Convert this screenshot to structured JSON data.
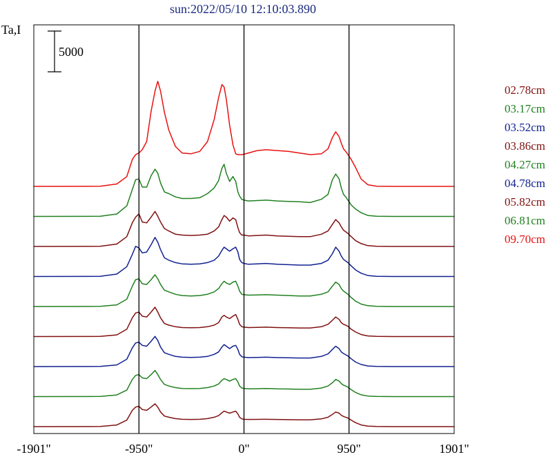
{
  "chart_data": {
    "type": "line",
    "title": "sun:2022/05/10 12:10:03.890",
    "ylabel": "Ta,I",
    "scale_bar_label": "5000",
    "scale_bar_value": 5000,
    "x_ticks": [
      -1901,
      -950,
      0,
      950,
      1901
    ],
    "x_tick_labels": [
      "-1901\"",
      "-950\"",
      "0\"",
      "950\"",
      "1901\""
    ],
    "xlim": [
      -1901,
      1901
    ],
    "vertical_lines_x": [
      -950,
      0,
      950
    ],
    "grid": false,
    "legend_position": "right",
    "colors": {
      "title": "#1a2a80",
      "frame": "#000000"
    },
    "x": [
      -1901,
      -1300,
      -1150,
      -1060,
      -1010,
      -980,
      -950,
      -920,
      -880,
      -840,
      -805,
      -780,
      -755,
      -720,
      -680,
      -620,
      -560,
      -480,
      -400,
      -330,
      -270,
      -230,
      -200,
      -180,
      -160,
      -130,
      -100,
      -75,
      -55,
      -40,
      -20,
      0,
      40,
      120,
      200,
      300,
      400,
      500,
      600,
      700,
      760,
      800,
      830,
      860,
      880,
      900,
      920,
      940,
      970,
      1010,
      1060,
      1120,
      1200,
      1350,
      1500,
      1901
    ],
    "series": [
      {
        "name": "09.70cm",
        "color": "#e81010",
        "values": [
          300,
          320,
          600,
          1500,
          3600,
          4200,
          4400,
          4800,
          5800,
          9500,
          12000,
          13200,
          12000,
          9400,
          7200,
          5200,
          4400,
          4300,
          4600,
          5800,
          8500,
          11200,
          12800,
          12500,
          11000,
          7800,
          5400,
          4300,
          4200,
          4200,
          4200,
          4250,
          4400,
          4700,
          4800,
          4700,
          4600,
          4400,
          4200,
          4300,
          4900,
          6300,
          7000,
          6400,
          5600,
          4900,
          4600,
          4200,
          3600,
          2600,
          1200,
          500,
          320,
          300,
          300,
          300
        ]
      },
      {
        "name": "06.81cm",
        "color": "#208020",
        "values": [
          300,
          320,
          600,
          1600,
          3600,
          4800,
          4900,
          3900,
          3900,
          5300,
          6100,
          5600,
          4400,
          3300,
          3100,
          2700,
          2500,
          2500,
          2600,
          3100,
          3800,
          4700,
          6200,
          6700,
          5600,
          4600,
          5200,
          4600,
          3300,
          2800,
          2400,
          2300,
          2200,
          2250,
          2300,
          2200,
          2150,
          2100,
          2000,
          2400,
          3000,
          4800,
          5500,
          4900,
          3800,
          3000,
          2700,
          2300,
          1700,
          1200,
          750,
          420,
          320,
          300,
          300,
          300
        ]
      },
      {
        "name": "05.82cm",
        "color": "#801010",
        "values": [
          300,
          320,
          600,
          1500,
          3200,
          3900,
          4300,
          3300,
          3200,
          3900,
          4600,
          4000,
          3300,
          2500,
          2200,
          1800,
          1700,
          1650,
          1700,
          1800,
          2200,
          2700,
          3600,
          4100,
          3900,
          3400,
          3800,
          3600,
          2600,
          2000,
          1700,
          1700,
          1600,
          1650,
          1700,
          1600,
          1550,
          1500,
          1500,
          1800,
          2200,
          3000,
          3600,
          3200,
          2700,
          2300,
          2100,
          1900,
          1500,
          1000,
          650,
          400,
          320,
          300,
          300,
          300
        ]
      },
      {
        "name": "04.78cm",
        "color": "#102090",
        "values": [
          300,
          320,
          600,
          1500,
          3000,
          4000,
          3800,
          3200,
          3300,
          4200,
          5100,
          4500,
          3600,
          2600,
          2300,
          2000,
          1850,
          1800,
          1850,
          2000,
          2300,
          2800,
          3500,
          3900,
          3700,
          3400,
          3700,
          3900,
          3300,
          2400,
          2000,
          1900,
          1800,
          1850,
          1900,
          1800,
          1750,
          1700,
          1700,
          1900,
          2300,
          3100,
          3900,
          3400,
          2800,
          2400,
          2200,
          2000,
          1600,
          1100,
          700,
          420,
          320,
          300,
          300,
          300
        ]
      },
      {
        "name": "04.27cm",
        "color": "#208020",
        "values": [
          300,
          320,
          500,
          1200,
          2800,
          3600,
          3700,
          3100,
          3000,
          3600,
          4200,
          3700,
          3000,
          2300,
          2100,
          1800,
          1650,
          1600,
          1650,
          1800,
          2100,
          2500,
          3100,
          3400,
          3200,
          3000,
          3300,
          3400,
          2800,
          2200,
          1800,
          1750,
          1700,
          1720,
          1750,
          1700,
          1650,
          1600,
          1600,
          1800,
          2100,
          2800,
          3300,
          3000,
          2500,
          2200,
          2000,
          1800,
          1400,
          950,
          600,
          400,
          320,
          300,
          300,
          300
        ]
      },
      {
        "name": "03.86cm",
        "color": "#801010",
        "values": [
          300,
          320,
          500,
          1200,
          2600,
          3200,
          3300,
          2800,
          2700,
          3300,
          3900,
          3300,
          2600,
          1900,
          1700,
          1500,
          1400,
          1380,
          1400,
          1500,
          1700,
          2000,
          2700,
          2900,
          2700,
          2500,
          2800,
          3000,
          2400,
          1800,
          1500,
          1450,
          1400,
          1420,
          1450,
          1400,
          1380,
          1350,
          1350,
          1500,
          1800,
          2300,
          2700,
          2400,
          2000,
          1800,
          1700,
          1550,
          1200,
          850,
          550,
          380,
          320,
          300,
          300,
          300
        ]
      },
      {
        "name": "03.52cm",
        "color": "#102090",
        "values": [
          300,
          320,
          500,
          1200,
          2600,
          3200,
          3300,
          2900,
          2800,
          3400,
          4000,
          3500,
          2700,
          2000,
          1800,
          1550,
          1450,
          1420,
          1450,
          1550,
          1800,
          2100,
          2700,
          3000,
          2800,
          2500,
          2800,
          2900,
          2400,
          1800,
          1500,
          1450,
          1400,
          1420,
          1450,
          1400,
          1380,
          1350,
          1350,
          1550,
          1850,
          2400,
          2800,
          2500,
          2100,
          1900,
          1750,
          1600,
          1250,
          850,
          550,
          380,
          320,
          300,
          300,
          300
        ]
      },
      {
        "name": "03.17cm",
        "color": "#208020",
        "values": [
          300,
          320,
          500,
          1100,
          2400,
          2900,
          3000,
          2600,
          2500,
          3000,
          3500,
          3000,
          2400,
          1800,
          1600,
          1400,
          1300,
          1280,
          1300,
          1400,
          1600,
          1850,
          2300,
          2500,
          2400,
          2200,
          2400,
          2500,
          2100,
          1600,
          1350,
          1300,
          1250,
          1270,
          1300,
          1250,
          1230,
          1200,
          1200,
          1350,
          1600,
          2000,
          2400,
          2200,
          1900,
          1700,
          1600,
          1450,
          1150,
          800,
          520,
          370,
          320,
          300,
          300,
          300
        ]
      },
      {
        "name": "02.78cm",
        "color": "#801010",
        "values": [
          300,
          320,
          500,
          1100,
          2300,
          2700,
          2800,
          2400,
          2300,
          2700,
          3100,
          2700,
          2100,
          1600,
          1450,
          1280,
          1200,
          1180,
          1200,
          1280,
          1450,
          1650,
          2000,
          2200,
          2100,
          1950,
          2100,
          2200,
          1850,
          1450,
          1250,
          1200,
          1180,
          1190,
          1200,
          1180,
          1160,
          1140,
          1140,
          1250,
          1450,
          1800,
          2100,
          1950,
          1700,
          1550,
          1450,
          1350,
          1100,
          780,
          500,
          360,
          320,
          300,
          300,
          300
        ]
      }
    ]
  }
}
